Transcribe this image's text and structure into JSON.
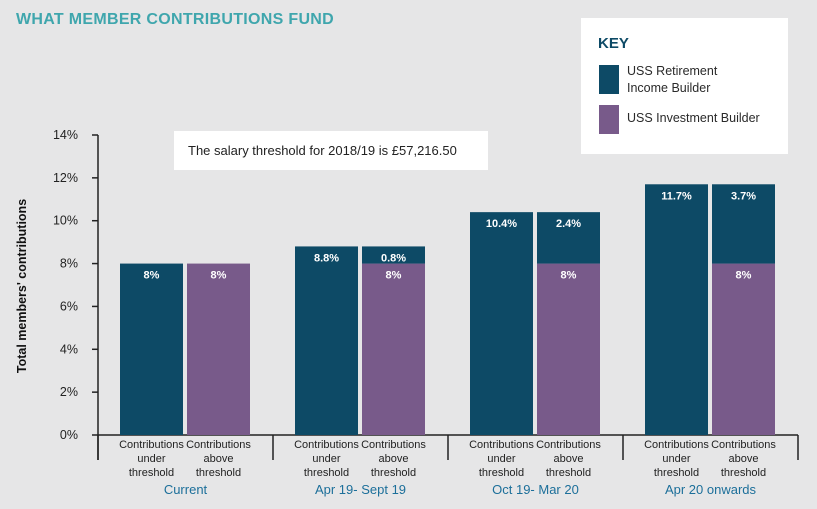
{
  "title": "WHAT MEMBER CONTRIBUTIONS FUND",
  "key": {
    "title": "KEY",
    "items": [
      {
        "label_lines": [
          "USS Retirement",
          "Income Builder"
        ],
        "color": "#0d4a66"
      },
      {
        "label_lines": [
          "USS Investment Builder"
        ],
        "color": "#785a8a"
      }
    ]
  },
  "note": "The salary threshold for 2018/19 is £57,216.50",
  "chart_data": {
    "type": "bar",
    "stacked": true,
    "ylabel": "Total members' contributions",
    "ylim": [
      0,
      14
    ],
    "yticks": [
      "0%",
      "2%",
      "4%",
      "6%",
      "8%",
      "10%",
      "12%",
      "14%"
    ],
    "grid": false,
    "legend": "top-right",
    "series_colors": {
      "retirement_income_builder": "#0d4a66",
      "investment_builder": "#785a8a"
    },
    "groups": [
      {
        "label": "Current",
        "bars": [
          {
            "label_lines": [
              "Contributions",
              "under",
              "threshold"
            ],
            "segments": [
              {
                "series": "retirement_income_builder",
                "value": 8,
                "label": "8%"
              }
            ]
          },
          {
            "label_lines": [
              "Contributions",
              "above",
              "threshold"
            ],
            "segments": [
              {
                "series": "investment_builder",
                "value": 8,
                "label": "8%"
              }
            ]
          }
        ]
      },
      {
        "label": "Apr 19- Sept 19",
        "bars": [
          {
            "label_lines": [
              "Contributions",
              "under",
              "threshold"
            ],
            "segments": [
              {
                "series": "retirement_income_builder",
                "value": 8.8,
                "label": "8.8%"
              }
            ]
          },
          {
            "label_lines": [
              "Contributions",
              "above",
              "threshold"
            ],
            "segments": [
              {
                "series": "investment_builder",
                "value": 8,
                "label": "8%"
              },
              {
                "series": "retirement_income_builder",
                "value": 0.8,
                "label": "0.8%"
              }
            ]
          }
        ]
      },
      {
        "label": "Oct 19- Mar 20",
        "bars": [
          {
            "label_lines": [
              "Contributions",
              "under",
              "threshold"
            ],
            "segments": [
              {
                "series": "retirement_income_builder",
                "value": 10.4,
                "label": "10.4%"
              }
            ]
          },
          {
            "label_lines": [
              "Contributions",
              "above",
              "threshold"
            ],
            "segments": [
              {
                "series": "investment_builder",
                "value": 8,
                "label": "8%"
              },
              {
                "series": "retirement_income_builder",
                "value": 2.4,
                "label": "2.4%"
              }
            ]
          }
        ]
      },
      {
        "label": "Apr 20 onwards",
        "bars": [
          {
            "label_lines": [
              "Contributions",
              "under",
              "threshold"
            ],
            "segments": [
              {
                "series": "retirement_income_builder",
                "value": 11.7,
                "label": "11.7%"
              }
            ]
          },
          {
            "label_lines": [
              "Contributions",
              "above",
              "threshold"
            ],
            "segments": [
              {
                "series": "investment_builder",
                "value": 8,
                "label": "8%"
              },
              {
                "series": "retirement_income_builder",
                "value": 3.7,
                "label": "3.7%"
              }
            ]
          }
        ]
      }
    ]
  }
}
